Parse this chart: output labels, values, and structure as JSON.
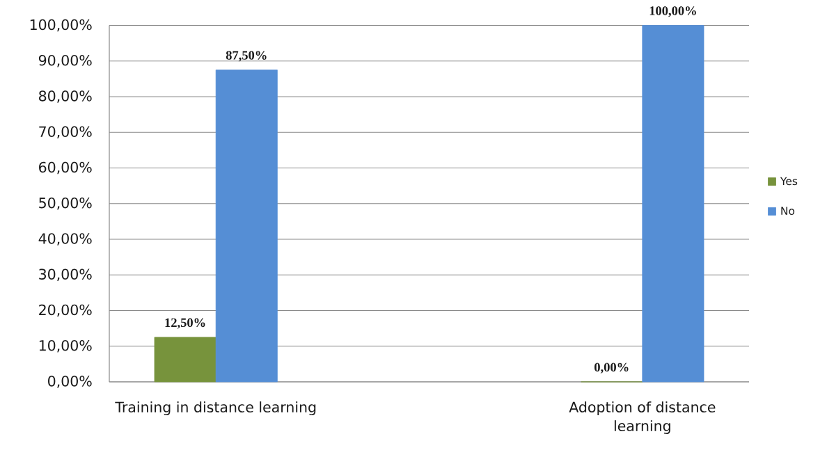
{
  "chart_data": {
    "type": "bar",
    "categories": [
      "Training in distance learning",
      "Adoption of distance learning"
    ],
    "series": [
      {
        "name": "Yes",
        "color": "#77933c",
        "values": [
          12.5,
          0
        ],
        "value_labels": [
          "12,50%",
          "0,00%"
        ]
      },
      {
        "name": "No",
        "color": "#558ed5",
        "values": [
          87.5,
          100
        ],
        "value_labels": [
          "87,50%",
          "100,00%"
        ]
      }
    ],
    "ylim": [
      0,
      100
    ],
    "yticks": [
      {
        "value": 0,
        "label": "0,00%"
      },
      {
        "value": 10,
        "label": "10,00%"
      },
      {
        "value": 20,
        "label": "20,00%"
      },
      {
        "value": 30,
        "label": "30,00%"
      },
      {
        "value": 40,
        "label": "40,00%"
      },
      {
        "value": 50,
        "label": "50,00%"
      },
      {
        "value": 60,
        "label": "60,00%"
      },
      {
        "value": 70,
        "label": "70,00%"
      },
      {
        "value": 80,
        "label": "80,00%"
      },
      {
        "value": 90,
        "label": "90,00%"
      },
      {
        "value": 100,
        "label": "100,00%"
      }
    ],
    "grid": "y",
    "legend": "right"
  }
}
